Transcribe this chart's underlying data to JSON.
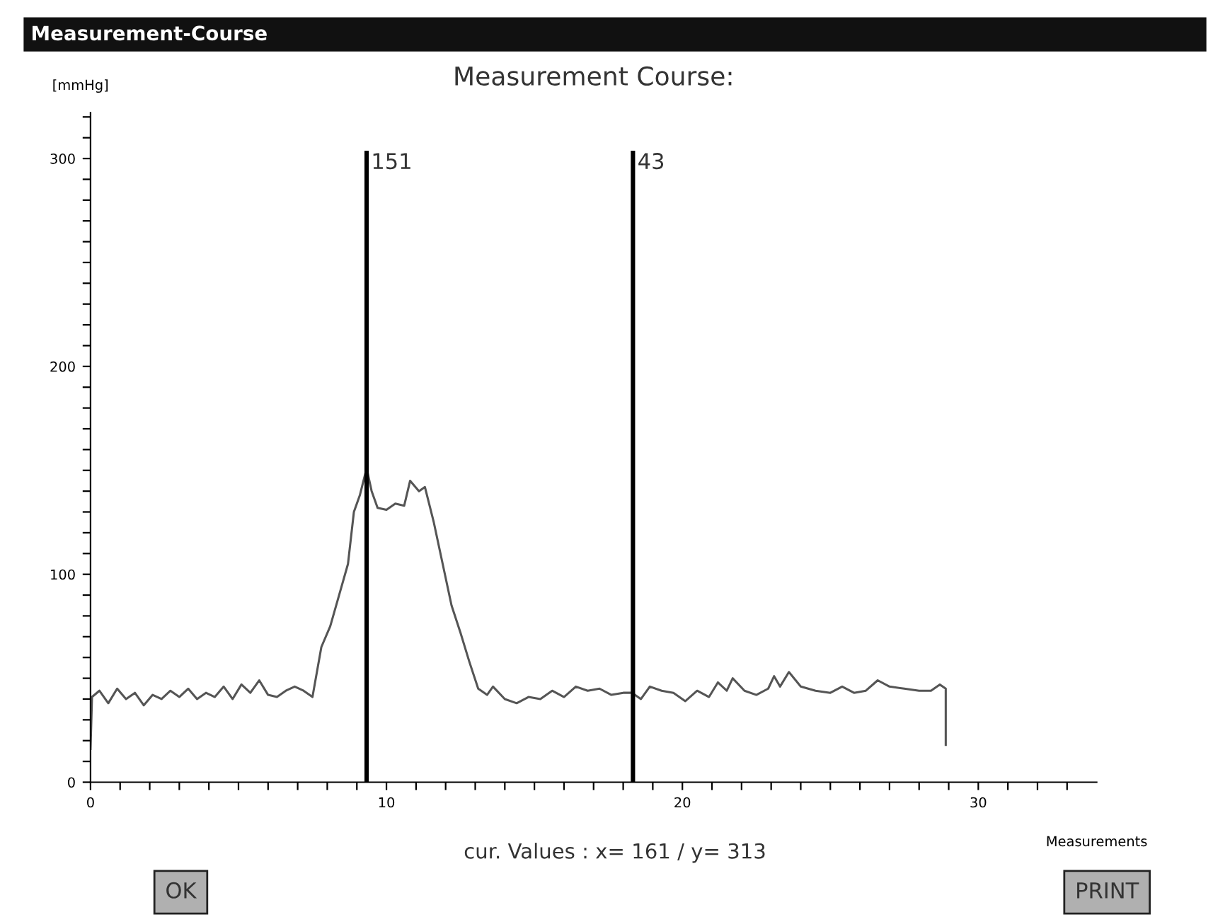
{
  "chart_data": {
    "type": "line",
    "title": "Measurement Course:",
    "xlabel": "Measurements",
    "ylabel": "[mmHg]",
    "annotations": [
      "Measurement-Course",
      "cur. Values : x= 161 / y= 313",
      "OK",
      "PRINT",
      "151",
      "43"
    ],
    "xlim": [
      0,
      34
    ],
    "ylim": [
      0,
      322
    ],
    "xticks": [
      0,
      {
        "value": 1,
        "label": null
      },
      {
        "value": 2,
        "label": null
      },
      {
        "value": 3,
        "label": null
      },
      {
        "value": 4,
        "label": null
      },
      {
        "value": 5,
        "label": null
      },
      {
        "value": 6,
        "label": null
      },
      {
        "value": 7,
        "label": null
      },
      {
        "value": 8,
        "label": null
      },
      {
        "value": 9,
        "label": null
      },
      10,
      {
        "value": 11,
        "label": null
      },
      {
        "value": 12,
        "label": null
      },
      {
        "value": 13,
        "label": null
      },
      {
        "value": 14,
        "label": null
      },
      {
        "value": 15,
        "label": null
      },
      {
        "value": 16,
        "label": null
      },
      {
        "value": 17,
        "label": null
      },
      {
        "value": 18,
        "label": null
      },
      {
        "value": 19,
        "label": null
      },
      20,
      {
        "value": 21,
        "label": null
      },
      {
        "value": 22,
        "label": null
      },
      {
        "value": 23,
        "label": null
      },
      {
        "value": 24,
        "label": null
      },
      {
        "value": 25,
        "label": null
      },
      {
        "value": 26,
        "label": null
      },
      {
        "value": 27,
        "label": null
      },
      {
        "value": 28,
        "label": null
      },
      {
        "value": 29,
        "label": null
      },
      30,
      {
        "value": 31,
        "label": null
      },
      {
        "value": 32,
        "label": null
      },
      {
        "value": 33,
        "label": null
      }
    ],
    "yticks": [
      0,
      {
        "value": 10,
        "label": null
      },
      {
        "value": 20,
        "label": null
      },
      {
        "value": 30,
        "label": null
      },
      {
        "value": 40,
        "label": null
      },
      {
        "value": 50,
        "label": null
      },
      {
        "value": 60,
        "label": null
      },
      {
        "value": 70,
        "label": null
      },
      {
        "value": 80,
        "label": null
      },
      {
        "value": 90,
        "label": null
      },
      100,
      {
        "value": 110,
        "label": null
      },
      {
        "value": 120,
        "label": null
      },
      {
        "value": 130,
        "label": null
      },
      {
        "value": 140,
        "label": null
      },
      {
        "value": 150,
        "label": null
      },
      {
        "value": 160,
        "label": null
      },
      {
        "value": 170,
        "label": null
      },
      {
        "value": 180,
        "label": null
      },
      {
        "value": 190,
        "label": null
      },
      200,
      {
        "value": 210,
        "label": null
      },
      {
        "value": 220,
        "label": null
      },
      {
        "value": 230,
        "label": null
      },
      {
        "value": 240,
        "label": null
      },
      {
        "value": 250,
        "label": null
      },
      {
        "value": 260,
        "label": null
      },
      {
        "value": 270,
        "label": null
      },
      {
        "value": 280,
        "label": null
      },
      {
        "value": 290,
        "label": null
      },
      300,
      {
        "value": 310,
        "label": null
      },
      {
        "value": 320,
        "label": null
      }
    ],
    "grid": false,
    "legend": false,
    "marker": "none",
    "line_style": "solid",
    "ref_lines": [
      {
        "axis": "x",
        "value": 9.33,
        "color": "#000000"
      },
      {
        "axis": "x",
        "value": 18.33,
        "color": "#000000"
      }
    ],
    "series": [
      {
        "color": "#555555",
        "x": [
          0,
          0.05,
          0.3,
          0.6,
          0.9,
          1.2,
          1.5,
          1.8,
          2.1,
          2.4,
          2.7,
          3.0,
          3.3,
          3.6,
          3.9,
          4.2,
          4.5,
          4.8,
          5.1,
          5.4,
          5.7,
          6.0,
          6.3,
          6.6,
          6.9,
          7.2,
          7.5,
          7.8,
          8.1,
          8.4,
          8.7,
          8.9,
          9.1,
          9.33,
          9.5,
          9.7,
          10.0,
          10.3,
          10.6,
          10.8,
          11.1,
          11.3,
          11.6,
          11.9,
          12.2,
          12.5,
          12.8,
          13.1,
          13.4,
          13.6,
          14.0,
          14.4,
          14.8,
          15.2,
          15.6,
          16.0,
          16.4,
          16.8,
          17.2,
          17.6,
          18.0,
          18.3,
          18.6,
          18.9,
          19.3,
          19.7,
          20.1,
          20.5,
          20.9,
          21.2,
          21.5,
          21.7,
          22.1,
          22.5,
          22.9,
          23.1,
          23.3,
          23.6,
          24.0,
          24.5,
          25.0,
          25.4,
          25.8,
          26.2,
          26.6,
          27.0,
          27.5,
          28.0,
          28.4,
          28.7,
          28.9,
          28.9
        ],
        "values": [
          16,
          41,
          44,
          38,
          45,
          40,
          43,
          37,
          42,
          40,
          44,
          41,
          45,
          40,
          43,
          41,
          46,
          40,
          47,
          43,
          49,
          42,
          41,
          44,
          46,
          44,
          41,
          65,
          75,
          90,
          105,
          130,
          138,
          151,
          140,
          132,
          131,
          134,
          133,
          145,
          140,
          142,
          125,
          105,
          85,
          72,
          58,
          45,
          42,
          46,
          40,
          38,
          41,
          40,
          44,
          41,
          46,
          44,
          45,
          42,
          43,
          43,
          40,
          46,
          44,
          43,
          39,
          44,
          41,
          48,
          44,
          50,
          44,
          42,
          45,
          51,
          46,
          53,
          46,
          44,
          43,
          46,
          43,
          44,
          49,
          46,
          45,
          44,
          44,
          47,
          45,
          18
        ]
      }
    ]
  }
}
